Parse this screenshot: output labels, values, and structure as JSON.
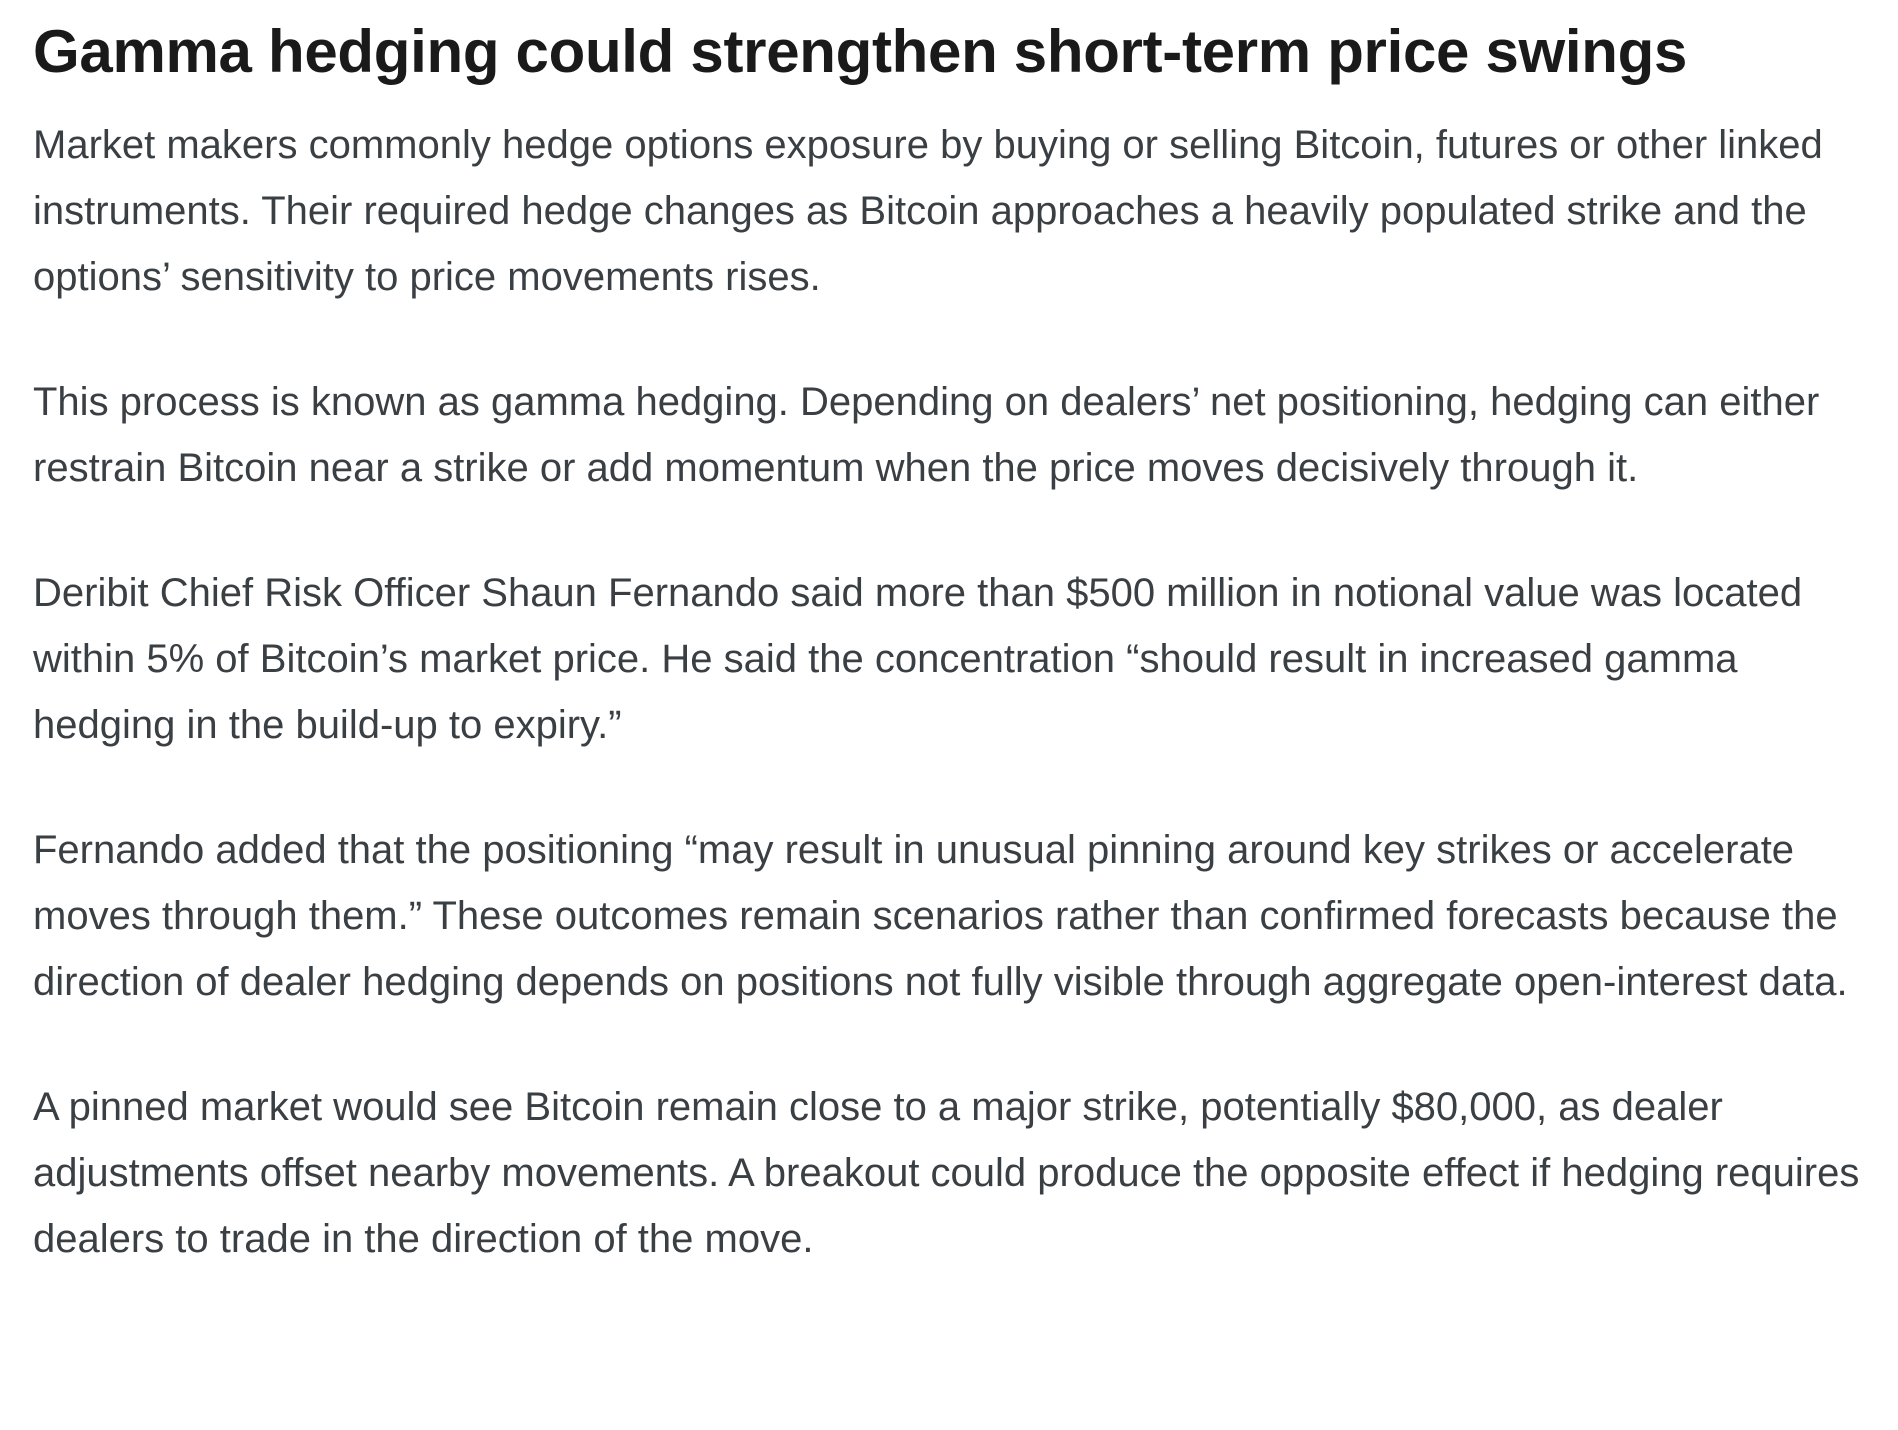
{
  "heading": "Gamma hedging could strengthen short-term price swings",
  "paragraphs": [
    "Market makers commonly hedge options exposure by buying or selling Bitcoin, futures or other linked instruments. Their required hedge changes as Bitcoin approaches a heavily populated strike and the options’ sensitivity to price movements rises.",
    "This process is known as gamma hedging. Depending on dealers’ net positioning, hedging can either restrain Bitcoin near a strike or add momentum when the price moves decisively through it.",
    "Deribit Chief Risk Officer Shaun Fernando said more than $500 million in notional value was located within 5% of Bitcoin’s market price. He said the concentration “should result in increased gamma hedging in the build-up to expiry.”",
    "Fernando added that the positioning “may result in unusual pinning around key strikes or accelerate moves through them.” These outcomes remain scenarios rather than confirmed forecasts because the direction of dealer hedging depends on positions not fully visible through aggregate open-interest data.",
    "A pinned market would see Bitcoin remain close to a major strike, potentially $80,000, as dealer adjustments offset nearby movements. A breakout could produce the opposite effect if hedging requires dealers to trade in the direction of the move."
  ]
}
